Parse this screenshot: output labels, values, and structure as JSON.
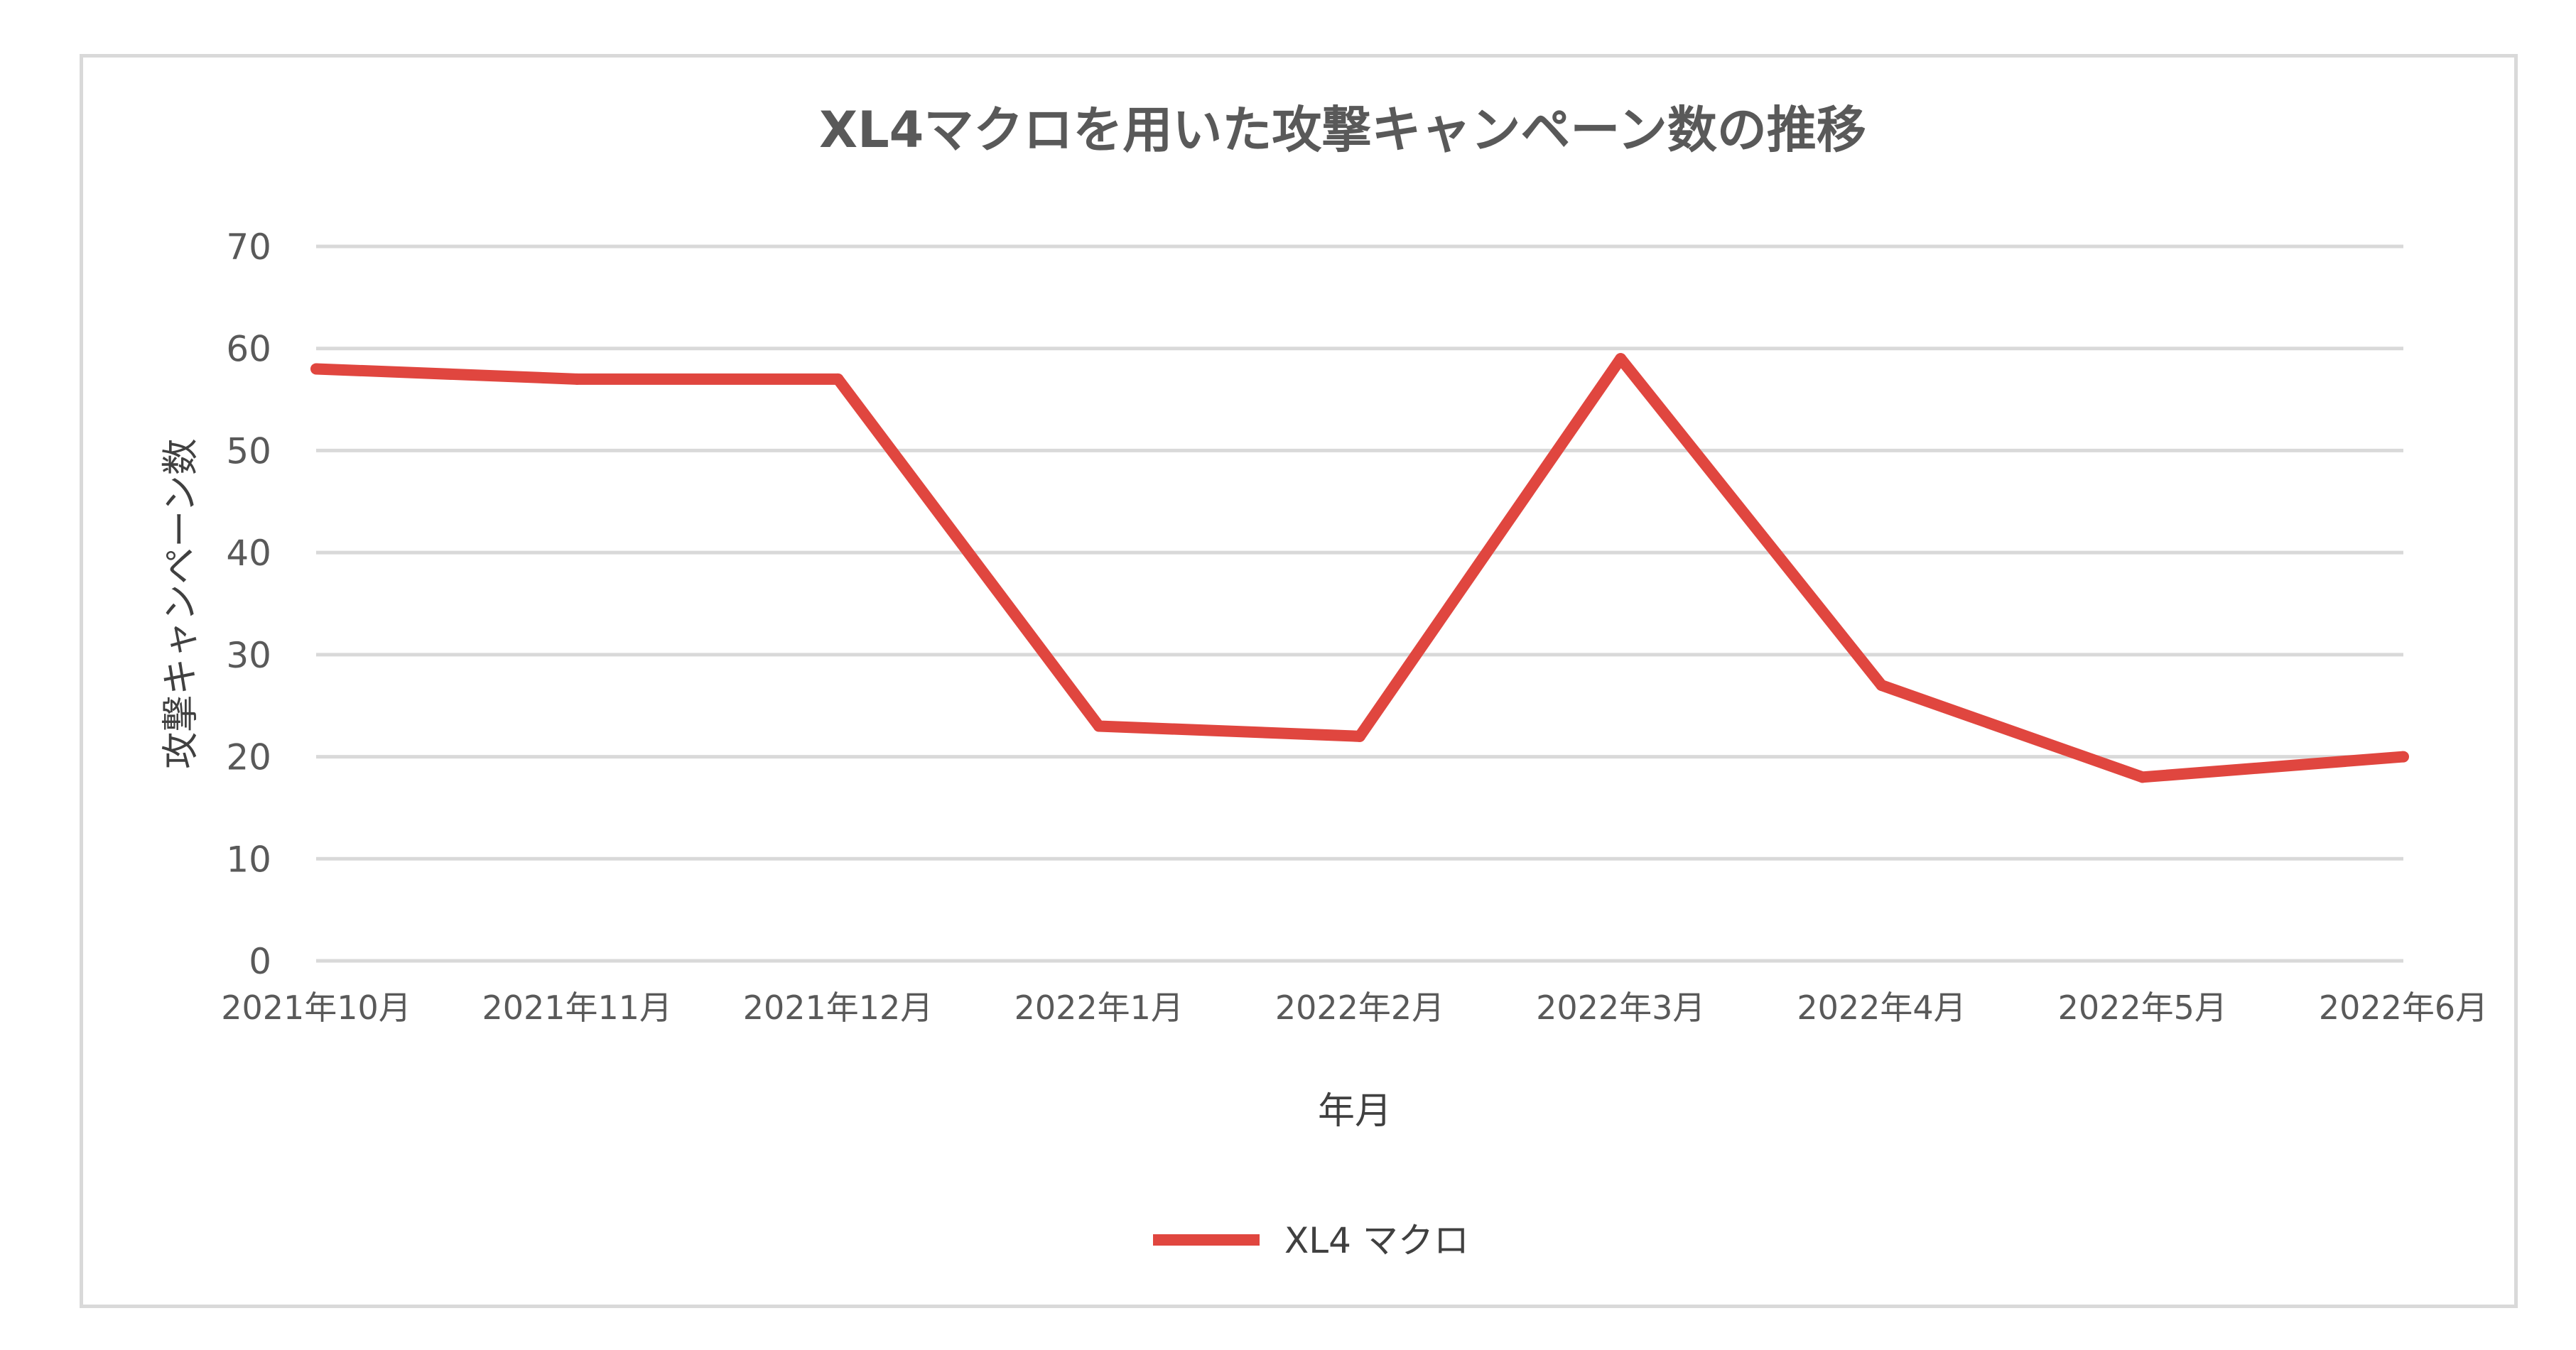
{
  "chart_data": {
    "type": "line",
    "title": "XL4マクロを用いた攻撃キャンペーン数の推移",
    "xlabel": "年月",
    "ylabel": "攻撃キャンペーン数",
    "categories": [
      "2021年10月",
      "2021年11月",
      "2021年12月",
      "2022年1月",
      "2022年2月",
      "2022年3月",
      "2022年4月",
      "2022年5月",
      "2022年6月"
    ],
    "series": [
      {
        "name": "XL4 マクロ",
        "values": [
          58,
          57,
          57,
          23,
          22,
          59,
          27,
          18,
          20
        ],
        "color": "#e0463f"
      }
    ],
    "ylim": [
      0,
      70
    ],
    "yticks": [
      0,
      10,
      20,
      30,
      40,
      50,
      60,
      70
    ],
    "grid": true,
    "legend_position": "bottom"
  }
}
